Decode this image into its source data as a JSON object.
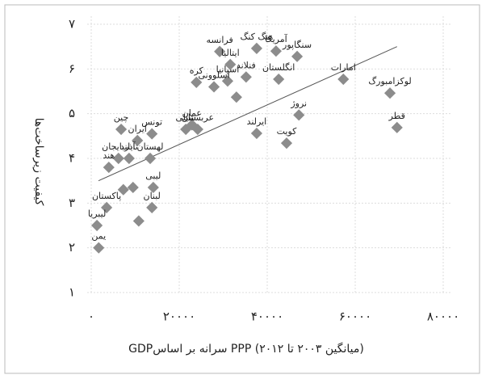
{
  "chart_data": {
    "type": "scatter",
    "x_label": "GDPسرانه بر اساس PPP (میانگین ۲۰۰۳ تا ۲۰۱۲)",
    "y_label": "کیفیت زیرساخت‌ها",
    "labels": [
      "یمن",
      "لیبریا",
      "پاکستان",
      null,
      "لبنان",
      null,
      null,
      "هند",
      "تایلند",
      "آذربایجان",
      "ایران",
      "لهستان",
      "لیبی",
      "چین",
      "تونس",
      "شیلی",
      "عمان",
      "عربستان",
      "کره",
      "اسلوونی",
      "اسپانیا",
      "ایتالیا",
      null,
      "فنلاند",
      "فرانسه",
      "هنگ کنگ",
      "ایرلند",
      "انگلستان",
      "آمریکا",
      "سنگاپور",
      "کویت",
      "نروژ",
      "امارات",
      "لوکزامبورگ",
      "قطر"
    ],
    "x": [
      1700,
      1300,
      3500,
      10800,
      13800,
      7300,
      9500,
      4000,
      8600,
      6200,
      10500,
      13400,
      14100,
      6800,
      13800,
      21500,
      22900,
      24200,
      23900,
      27900,
      31000,
      31600,
      33000,
      35200,
      29200,
      37600,
      37600,
      42600,
      42000,
      46800,
      44400,
      47200,
      57300,
      67900,
      69500
    ],
    "y": [
      2.0,
      2.5,
      2.9,
      2.6,
      2.9,
      3.3,
      3.35,
      3.8,
      4.0,
      4.0,
      4.4,
      4.0,
      3.35,
      4.65,
      4.55,
      4.65,
      4.75,
      4.65,
      5.7,
      5.6,
      5.73,
      6.1,
      5.37,
      5.82,
      6.39,
      6.46,
      4.56,
      5.77,
      6.4,
      6.28,
      4.34,
      4.97,
      5.77,
      5.46,
      4.69
    ],
    "color": "#8c8c8c",
    "trendline": {
      "x": [
        1650,
        69500
      ],
      "y": [
        3.5,
        6.5
      ],
      "color": "#555555"
    },
    "xlim": [
      0,
      80000
    ],
    "xticks": [
      {
        "value": 0,
        "label": "۰"
      },
      {
        "value": 20000,
        "label": "۲۰۰۰۰"
      },
      {
        "value": 40000,
        "label": "۴۰۰۰۰"
      },
      {
        "value": 60000,
        "label": "۶۰۰۰۰"
      },
      {
        "value": 80000,
        "label": "۸۰۰۰۰"
      }
    ],
    "ylim": [
      1,
      7
    ],
    "yticks": [
      {
        "value": 1,
        "label": "۱"
      },
      {
        "value": 2,
        "label": "۲"
      },
      {
        "value": 3,
        "label": "۳"
      },
      {
        "value": 4,
        "label": "۴"
      },
      {
        "value": 5,
        "label": "۵"
      },
      {
        "value": 6,
        "label": "۶"
      },
      {
        "value": 7,
        "label": "۷"
      }
    ],
    "grid": true
  }
}
